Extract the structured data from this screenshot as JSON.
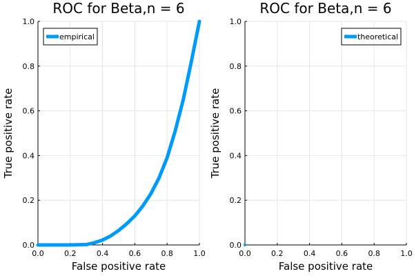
{
  "chart_data": [
    {
      "type": "line",
      "title": "ROC for Beta,n = 6",
      "xlabel": "False positive rate",
      "ylabel": "True positive rate",
      "xlim": [
        0,
        1
      ],
      "ylim": [
        0,
        1
      ],
      "xticks": [
        "0.0",
        "0.2",
        "0.4",
        "0.6",
        "0.8",
        "1.0"
      ],
      "yticks": [
        "0.0",
        "0.2",
        "0.4",
        "0.6",
        "0.8",
        "1.0"
      ],
      "grid": true,
      "legend_position": "top-left",
      "series": [
        {
          "name": "empirical",
          "color": "#009af9",
          "x": [
            0.0,
            0.1,
            0.2,
            0.3,
            0.35,
            0.4,
            0.45,
            0.5,
            0.55,
            0.6,
            0.65,
            0.7,
            0.75,
            0.8,
            0.85,
            0.9,
            0.95,
            1.0
          ],
          "y": [
            0.0,
            0.0,
            0.0,
            0.002,
            0.01,
            0.022,
            0.04,
            0.065,
            0.095,
            0.13,
            0.175,
            0.23,
            0.3,
            0.39,
            0.51,
            0.65,
            0.82,
            1.0
          ]
        }
      ]
    },
    {
      "type": "line",
      "title": "ROC for Beta,n = 6",
      "xlabel": "False positive rate",
      "ylabel": "True positive rate",
      "xlim": [
        0,
        1
      ],
      "ylim": [
        0,
        1
      ],
      "xticks": [
        "0.0",
        "0.2",
        "0.4",
        "0.6",
        "0.8",
        "1.0"
      ],
      "yticks": [
        "0.0",
        "0.2",
        "0.4",
        "0.6",
        "0.8",
        "1.0"
      ],
      "grid": true,
      "legend_position": "top-right",
      "series": [
        {
          "name": "theoretical",
          "color": "#009af9",
          "x": [
            0.0
          ],
          "y": [
            0.0
          ]
        }
      ]
    }
  ]
}
